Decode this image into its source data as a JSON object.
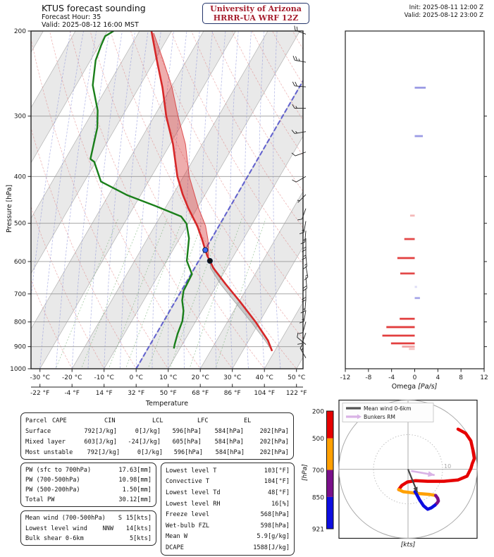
{
  "header": {
    "title": "KTUS forecast sounding",
    "forecast_hour": "Forecast Hour: 35",
    "valid_local": "Valid: 2025-08-12 16:00 MST",
    "org_line1": "University of Arizona",
    "org_line2": "HRRR-UA WRF 12Z",
    "init_utc": "Init: 2025-08-11 12:00 Z",
    "valid_utc": "Valid: 2025-08-12 23:00 Z"
  },
  "chart_data": [
    {
      "type": "line",
      "id": "skewt",
      "title": "KTUS forecast sounding",
      "xlabel": "Temperature",
      "ylabel": "Pressure [hPa]",
      "x_unit_c": "°C",
      "x_unit_f": "°F",
      "x_ticks_c": [
        -30,
        -20,
        -10,
        0,
        10,
        20,
        30,
        40,
        50
      ],
      "x_ticks_f": [
        -22,
        -4,
        14,
        32,
        50,
        68,
        86,
        104,
        122
      ],
      "y_ticks": [
        200,
        300,
        400,
        500,
        600,
        700,
        800,
        900,
        1000
      ],
      "ylim": [
        1000,
        200
      ],
      "xlim_c": [
        -30,
        50
      ],
      "grid": true,
      "zero_isotherm_c": 0,
      "zero_isotherm_color": "#4747cc",
      "series": [
        {
          "name": "temperature",
          "color": "#d62728",
          "points": [
            [
              200,
              -56.3
            ],
            [
              230,
              -49.3
            ],
            [
              262,
              -42.6
            ],
            [
              300,
              -36.3
            ],
            [
              343,
              -29.1
            ],
            [
              400,
              -21.9
            ],
            [
              435,
              -17.1
            ],
            [
              465,
              -12.8
            ],
            [
              506,
              -6.8
            ],
            [
              541,
              -2.7
            ],
            [
              568,
              0.1
            ],
            [
              584,
              1.8
            ],
            [
              598,
              3.5
            ],
            [
              619,
              5.9
            ],
            [
              668,
              12.6
            ],
            [
              724,
              20.0
            ],
            [
              801,
              28.9
            ],
            [
              874,
              36.0
            ],
            [
              919,
              39.2
            ]
          ]
        },
        {
          "name": "dewpoint",
          "color": "#1a7f1a",
          "points": [
            [
              200,
              -68.1
            ],
            [
              205,
              -69.8
            ],
            [
              214,
              -69.4
            ],
            [
              230,
              -68.4
            ],
            [
              259,
              -64.8
            ],
            [
              292,
              -58.7
            ],
            [
              317,
              -55.7
            ],
            [
              368,
              -52.2
            ],
            [
              373,
              -50.5
            ],
            [
              410,
              -44.8
            ],
            [
              437,
              -34.3
            ],
            [
              460,
              -23.6
            ],
            [
              484,
              -13.5
            ],
            [
              501,
              -10.5
            ],
            [
              537,
              -7.1
            ],
            [
              598,
              -3.7
            ],
            [
              637,
              0.3
            ],
            [
              690,
              0.7
            ],
            [
              722,
              2.0
            ],
            [
              759,
              4.3
            ],
            [
              797,
              5.8
            ],
            [
              846,
              6.6
            ],
            [
              890,
              7.6
            ],
            [
              908,
              8.1
            ]
          ]
        },
        {
          "name": "parcel-above-lcl",
          "color": "#d62728",
          "fill": "rgba(214,39,40,0.38)",
          "points": [
            [
              202,
              -55.2
            ],
            [
              230,
              -47.3
            ],
            [
              262,
              -39.6
            ],
            [
              300,
              -32.6
            ],
            [
              343,
              -25.2
            ],
            [
              400,
              -18.2
            ],
            [
              465,
              -9.6
            ],
            [
              506,
              -4.2
            ],
            [
              541,
              -0.9
            ],
            [
              568,
              1.1
            ],
            [
              584,
              2.2
            ]
          ]
        },
        {
          "name": "parcel-below-lcl",
          "color": "#9a9a9a",
          "fill": "rgba(125,125,125,0.32)",
          "points": [
            [
              598,
              3.5
            ],
            [
              619,
              5.0
            ],
            [
              668,
              11.0
            ],
            [
              724,
              18.3
            ],
            [
              801,
              27.5
            ],
            [
              874,
              35.1
            ],
            [
              919,
              39.2
            ]
          ]
        }
      ],
      "markers": [
        {
          "name": "freezing-level-marker",
          "p": 568,
          "t": 0.1,
          "color": "#3a6aff"
        },
        {
          "name": "lcl-marker",
          "p": 598,
          "t": 3.5,
          "color": "#111111"
        }
      ],
      "wind_barbs": [
        [
          203,
          290,
          20
        ],
        [
          232,
          280,
          25
        ],
        [
          261,
          275,
          20
        ],
        [
          289,
          270,
          15
        ],
        [
          323,
          260,
          15
        ],
        [
          356,
          250,
          10
        ],
        [
          400,
          240,
          10
        ],
        [
          436,
          225,
          5
        ],
        [
          466,
          200,
          10
        ],
        [
          495,
          190,
          15
        ],
        [
          518,
          185,
          15
        ],
        [
          537,
          180,
          15
        ],
        [
          558,
          180,
          15
        ],
        [
          582,
          175,
          15
        ],
        [
          613,
          170,
          15
        ],
        [
          646,
          175,
          20
        ],
        [
          682,
          180,
          20
        ],
        [
          720,
          185,
          15
        ],
        [
          757,
          190,
          15
        ],
        [
          799,
          195,
          10
        ],
        [
          843,
          200,
          10
        ],
        [
          891,
          310,
          10
        ],
        [
          950,
          330,
          15
        ]
      ]
    },
    {
      "type": "bar",
      "id": "omega",
      "xlabel_prefix": "Omega ",
      "xlabel_unit": "[Pa/s]",
      "x_ticks": [
        -12,
        -8,
        -4,
        0,
        4,
        8,
        12
      ],
      "xlim": [
        -12,
        12
      ],
      "neg_color": "#e03535",
      "pos_color": "#8a8ae0",
      "bars": [
        {
          "p": 262,
          "v": 1.9,
          "o": 0.85
        },
        {
          "p": 330,
          "v": 1.4,
          "o": 0.85
        },
        {
          "p": 482,
          "v": -0.8,
          "o": 0.35
        },
        {
          "p": 539,
          "v": -1.8,
          "o": 0.9
        },
        {
          "p": 590,
          "v": -3.0,
          "o": 0.95
        },
        {
          "p": 635,
          "v": -2.5,
          "o": 0.9
        },
        {
          "p": 677,
          "v": 0.4,
          "o": 0.3
        },
        {
          "p": 714,
          "v": 0.9,
          "o": 0.75
        },
        {
          "p": 788,
          "v": -2.6,
          "o": 0.95
        },
        {
          "p": 820,
          "v": -4.9,
          "o": 0.95
        },
        {
          "p": 854,
          "v": -5.6,
          "o": 0.95
        },
        {
          "p": 886,
          "v": -4.1,
          "o": 0.95
        },
        {
          "p": 900,
          "v": -2.2,
          "o": 0.45
        },
        {
          "p": 910,
          "v": -1.0,
          "o": 0.3
        }
      ]
    },
    {
      "type": "line",
      "id": "hodograph",
      "xlabel": "[kts]",
      "ylabel": "[hPa]",
      "ring_label": "10",
      "rings_kts": [
        10,
        20
      ],
      "legend": [
        {
          "label": "Mean wind 0-6km",
          "color": "#555555"
        },
        {
          "label": "Bunkers RM",
          "color": "#d9b3e6"
        }
      ],
      "colorbar": {
        "labels": [
          200,
          500,
          700,
          850,
          921
        ],
        "colors": [
          "#e60000",
          "#ffa000",
          "#7a0f8a",
          "#0d0de0"
        ]
      },
      "segments": [
        {
          "name": "200-500 hPa",
          "color": "#e60000",
          "uv": [
            [
              14.5,
              11.6
            ],
            [
              16.7,
              10.4
            ],
            [
              18.2,
              8.2
            ],
            [
              18.8,
              5.5
            ],
            [
              19.2,
              3.1
            ],
            [
              18.6,
              1.6
            ],
            [
              18.2,
              0.2
            ],
            [
              17.1,
              -2.0
            ],
            [
              14.5,
              -3.1
            ],
            [
              10.4,
              -3.5
            ],
            [
              5.7,
              -3.5
            ],
            [
              2.2,
              -3.3
            ],
            [
              -0.2,
              -3.7
            ],
            [
              -1.8,
              -4.7
            ],
            [
              -2.7,
              -5.9
            ]
          ]
        },
        {
          "name": "500-700 hPa",
          "color": "#ffa000",
          "uv": [
            [
              -2.7,
              -5.9
            ],
            [
              -1.4,
              -6.5
            ],
            [
              0.2,
              -6.7
            ],
            [
              3.7,
              -7.1
            ],
            [
              6.3,
              -7.3
            ],
            [
              8.0,
              -7.6
            ]
          ]
        },
        {
          "name": "700-850 hPa",
          "color": "#7a0f8a",
          "uv": [
            [
              8.0,
              -7.6
            ],
            [
              8.6,
              -8.4
            ],
            [
              8.8,
              -9.2
            ],
            [
              8.4,
              -9.8
            ],
            [
              7.8,
              -10.4
            ]
          ]
        },
        {
          "name": "850-921 hPa",
          "color": "#0d0de0",
          "uv": [
            [
              7.8,
              -10.4
            ],
            [
              6.7,
              -11.2
            ],
            [
              5.7,
              -11.6
            ],
            [
              4.5,
              -10.6
            ],
            [
              3.3,
              -8.8
            ],
            [
              2.4,
              -7.1
            ],
            [
              2.0,
              -6.5
            ]
          ]
        }
      ],
      "mean_wind_vector": {
        "from": [
          0,
          0
        ],
        "to": [
          2.7,
          -6.7
        ]
      },
      "bunkers_rm_vector": {
        "from": [
          0.9,
          -0.5
        ],
        "to": [
          7.7,
          -1.7
        ]
      }
    }
  ],
  "tables": {
    "parcel": {
      "headers": [
        "Parcel",
        "CAPE",
        "CIN",
        "LCL",
        "LFC",
        "EL"
      ],
      "rows": [
        [
          "Surface",
          "792[J/kg]",
          "0[J/kg]",
          "596[hPa]",
          "584[hPa]",
          "202[hPa]"
        ],
        [
          "Mixed layer",
          "603[J/kg]",
          "-24[J/kg]",
          "605[hPa]",
          "584[hPa]",
          "202[hPa]"
        ],
        [
          "Most unstable",
          "792[J/kg]",
          "0[J/kg]",
          "596[hPa]",
          "584[hPa]",
          "202[hPa]"
        ]
      ]
    },
    "pw": {
      "rows": [
        [
          "PW (sfc to 700hPa)",
          "17.63[mm]"
        ],
        [
          "PW (700-500hPa)",
          "10.98[mm]"
        ],
        [
          "PW (500-200hPa)",
          "1.50[mm]"
        ],
        [
          "Total PW",
          "30.12[mm]"
        ]
      ]
    },
    "wind": {
      "rows": [
        [
          "Mean wind (700-500hPa)",
          "S",
          "15[kts]"
        ],
        [
          "Lowest level wind",
          "NNW",
          "14[kts]"
        ],
        [
          "Bulk shear 0-6km",
          "",
          "5[kts]"
        ]
      ]
    },
    "levels": {
      "rows": [
        [
          "Lowest level T",
          "103[°F]"
        ],
        [
          "Convective T",
          "104[°F]"
        ],
        [
          "Lowest level Td",
          "48[°F]"
        ],
        [
          "Lowest level RH",
          "16[%]"
        ],
        [
          "Freeze level",
          "568[hPa]"
        ],
        [
          "Wet-bulb FZL",
          "598[hPa]"
        ],
        [
          "Mean W",
          "5.9[g/kg]"
        ],
        [
          "DCAPE",
          "1588[J/kg]"
        ]
      ]
    }
  }
}
